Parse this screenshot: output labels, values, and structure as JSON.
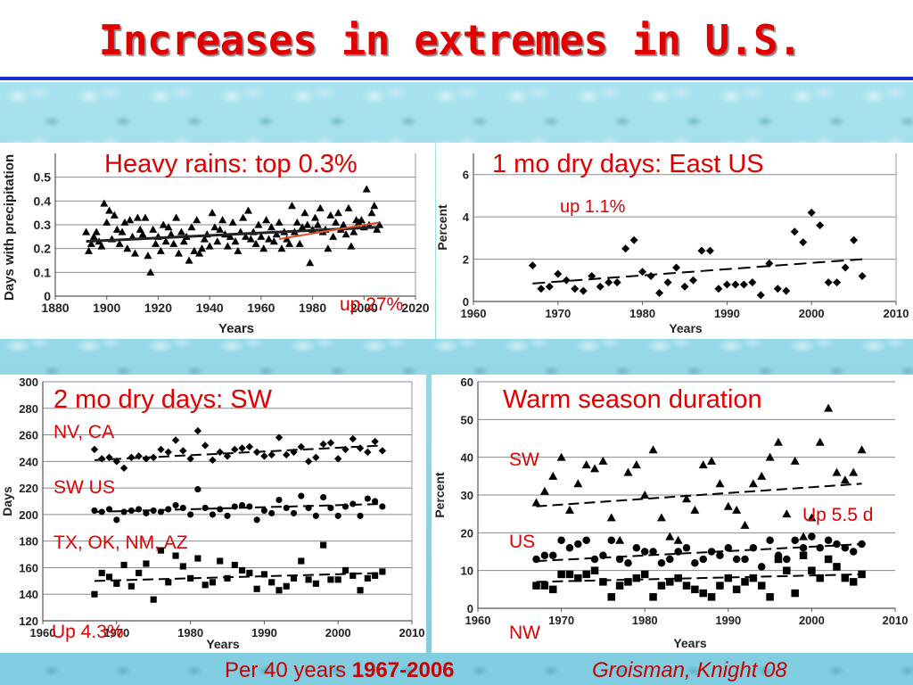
{
  "title": "Increases in extremes in U.S.",
  "footer": {
    "period_prefix": "Per 40 years ",
    "period_years": "1967-2006",
    "credit": "Groisman, Knight 08"
  },
  "chart_data": [
    {
      "type": "scatter",
      "panel_label": "Heavy rains: top 0.3%",
      "note": "up 27%",
      "xlabel": "Years",
      "ylabel": "Days with precipitation",
      "xlim": [
        1880,
        2020
      ],
      "ylim": [
        0,
        0.6
      ],
      "xticks": [
        1880,
        1900,
        1920,
        1940,
        1960,
        1980,
        2000,
        2020
      ],
      "yticks": [
        0,
        0.1,
        0.2,
        0.3,
        0.4,
        0.5
      ],
      "yticklabels": [
        "0",
        "0.1",
        "0.2",
        "0.3",
        "0.4",
        "0.5"
      ],
      "marker": "triangle",
      "marker_color": "#000000",
      "x": [
        1892,
        1893,
        1894,
        1895,
        1896,
        1897,
        1898,
        1899,
        1900,
        1901,
        1902,
        1903,
        1904,
        1905,
        1906,
        1907,
        1908,
        1909,
        1910,
        1911,
        1912,
        1913,
        1914,
        1915,
        1916,
        1917,
        1918,
        1919,
        1920,
        1921,
        1922,
        1923,
        1924,
        1925,
        1926,
        1927,
        1928,
        1929,
        1930,
        1931,
        1932,
        1933,
        1934,
        1935,
        1936,
        1937,
        1938,
        1939,
        1940,
        1941,
        1942,
        1943,
        1944,
        1945,
        1946,
        1947,
        1948,
        1949,
        1950,
        1951,
        1952,
        1953,
        1954,
        1955,
        1956,
        1957,
        1958,
        1959,
        1960,
        1961,
        1962,
        1963,
        1964,
        1965,
        1966,
        1967,
        1968,
        1969,
        1970,
        1971,
        1972,
        1973,
        1974,
        1975,
        1976,
        1977,
        1978,
        1979,
        1980,
        1981,
        1982,
        1983,
        1984,
        1985,
        1986,
        1987,
        1988,
        1989,
        1990,
        1991,
        1992,
        1993,
        1994,
        1995,
        1996,
        1997,
        1998,
        1999,
        2000,
        2001,
        2002,
        2003,
        2004,
        2005,
        2006
      ],
      "y": [
        0.27,
        0.19,
        0.22,
        0.25,
        0.27,
        0.23,
        0.21,
        0.39,
        0.31,
        0.36,
        0.24,
        0.34,
        0.28,
        0.22,
        0.27,
        0.31,
        0.2,
        0.32,
        0.25,
        0.18,
        0.33,
        0.28,
        0.26,
        0.33,
        0.17,
        0.1,
        0.28,
        0.22,
        0.25,
        0.19,
        0.3,
        0.23,
        0.29,
        0.26,
        0.22,
        0.33,
        0.18,
        0.27,
        0.23,
        0.25,
        0.15,
        0.29,
        0.19,
        0.32,
        0.18,
        0.2,
        0.24,
        0.26,
        0.21,
        0.35,
        0.29,
        0.23,
        0.28,
        0.32,
        0.26,
        0.21,
        0.25,
        0.31,
        0.23,
        0.19,
        0.27,
        0.33,
        0.25,
        0.36,
        0.24,
        0.27,
        0.22,
        0.3,
        0.25,
        0.2,
        0.32,
        0.24,
        0.29,
        0.23,
        0.26,
        0.31,
        0.2,
        0.27,
        0.24,
        0.22,
        0.38,
        0.27,
        0.31,
        0.22,
        0.29,
        0.35,
        0.3,
        0.14,
        0.28,
        0.33,
        0.3,
        0.37,
        0.27,
        0.28,
        0.2,
        0.34,
        0.25,
        0.31,
        0.35,
        0.28,
        0.3,
        0.26,
        0.37,
        0.21,
        0.27,
        0.32,
        0.31,
        0.32,
        0.29,
        0.45,
        0.3,
        0.35,
        0.38,
        0.28,
        0.3
      ],
      "trend_long": [
        [
          1892,
          0.23
        ],
        [
          2006,
          0.29
        ]
      ],
      "trend_recent": [
        [
          1967,
          0.24
        ],
        [
          2006,
          0.31
        ]
      ]
    },
    {
      "type": "scatter",
      "panel_label": "1 mo dry days: East US",
      "note": "up 1.1%",
      "xlabel": "Years",
      "ylabel": "Percent",
      "xlim": [
        1960,
        2010
      ],
      "ylim": [
        0,
        7
      ],
      "xticks": [
        1960,
        1970,
        1980,
        1990,
        2000,
        2010
      ],
      "yticks": [
        0,
        2,
        4,
        6
      ],
      "marker": "diamond",
      "x": [
        1967,
        1968,
        1969,
        1970,
        1971,
        1972,
        1973,
        1974,
        1975,
        1976,
        1977,
        1978,
        1979,
        1980,
        1981,
        1982,
        1983,
        1984,
        1985,
        1986,
        1987,
        1988,
        1989,
        1990,
        1991,
        1992,
        1993,
        1994,
        1995,
        1996,
        1997,
        1998,
        1999,
        2000,
        2001,
        2002,
        2003,
        2004,
        2005,
        2006
      ],
      "y": [
        1.7,
        0.6,
        0.7,
        1.3,
        1.0,
        0.6,
        0.5,
        1.2,
        0.7,
        0.9,
        0.9,
        2.5,
        2.9,
        1.4,
        1.2,
        0.4,
        0.9,
        1.6,
        0.7,
        1.0,
        2.4,
        2.4,
        0.6,
        0.8,
        0.8,
        0.8,
        0.9,
        0.3,
        1.8,
        0.6,
        0.5,
        3.3,
        2.8,
        4.2,
        3.6,
        0.9,
        0.9,
        1.6,
        2.9,
        1.2
      ],
      "trend": [
        [
          1967,
          0.85
        ],
        [
          2006,
          2.0
        ]
      ]
    },
    {
      "type": "scatter",
      "panel_label": "2 mo dry days: SW",
      "note": "Up 4.3%",
      "xlabel": "Years",
      "ylabel": "Days",
      "xlim": [
        1960,
        2010
      ],
      "ylim": [
        120,
        300
      ],
      "xticks": [
        1960,
        1970,
        1980,
        1990,
        2000,
        2010
      ],
      "yticks": [
        120,
        140,
        160,
        180,
        200,
        220,
        240,
        260,
        280,
        300
      ],
      "series": [
        {
          "name": "NV, CA",
          "marker": "diamond",
          "x": [
            1967,
            1968,
            1969,
            1970,
            1971,
            1972,
            1973,
            1974,
            1975,
            1976,
            1977,
            1978,
            1979,
            1980,
            1981,
            1982,
            1983,
            1984,
            1985,
            1986,
            1987,
            1988,
            1989,
            1990,
            1991,
            1992,
            1993,
            1994,
            1995,
            1996,
            1997,
            1998,
            1999,
            2000,
            2001,
            2002,
            2003,
            2004,
            2005,
            2006
          ],
          "y": [
            249,
            242,
            243,
            240,
            235,
            243,
            244,
            242,
            243,
            249,
            247,
            256,
            248,
            242,
            263,
            252,
            241,
            247,
            244,
            249,
            250,
            251,
            247,
            244,
            245,
            258,
            245,
            247,
            251,
            240,
            243,
            253,
            254,
            242,
            249,
            257,
            250,
            247,
            255,
            248
          ],
          "trend": [
            [
              1967,
              241
            ],
            [
              2006,
              252
            ]
          ]
        },
        {
          "name": "SW US",
          "marker": "circle",
          "x": [
            1967,
            1968,
            1969,
            1970,
            1971,
            1972,
            1973,
            1974,
            1975,
            1976,
            1977,
            1978,
            1979,
            1980,
            1981,
            1982,
            1983,
            1984,
            1985,
            1986,
            1987,
            1988,
            1989,
            1990,
            1991,
            1992,
            1993,
            1994,
            1995,
            1996,
            1997,
            1998,
            1999,
            2000,
            2001,
            2002,
            2003,
            2004,
            2005,
            2006
          ],
          "y": [
            203,
            202,
            204,
            196,
            202,
            203,
            204,
            201,
            203,
            202,
            204,
            207,
            205,
            200,
            219,
            205,
            200,
            204,
            199,
            206,
            207,
            206,
            196,
            203,
            201,
            211,
            205,
            201,
            214,
            205,
            199,
            213,
            205,
            199,
            206,
            208,
            199,
            212,
            210,
            206
          ],
          "trend": [
            [
              1967,
              202
            ],
            [
              2006,
              208
            ]
          ]
        },
        {
          "name": "TX, OK, NM, AZ",
          "marker": "square",
          "x": [
            1967,
            1968,
            1969,
            1970,
            1971,
            1972,
            1973,
            1974,
            1975,
            1976,
            1977,
            1978,
            1979,
            1980,
            1981,
            1982,
            1983,
            1984,
            1985,
            1986,
            1987,
            1988,
            1989,
            1990,
            1991,
            1992,
            1993,
            1994,
            1995,
            1996,
            1997,
            1998,
            1999,
            2000,
            2001,
            2002,
            2003,
            2004,
            2005,
            2006
          ],
          "y": [
            140,
            156,
            153,
            148,
            162,
            146,
            156,
            163,
            136,
            173,
            149,
            169,
            161,
            152,
            167,
            147,
            149,
            165,
            152,
            162,
            158,
            156,
            144,
            155,
            149,
            143,
            146,
            152,
            165,
            151,
            148,
            177,
            151,
            151,
            158,
            154,
            143,
            152,
            154,
            157
          ],
          "trend": [
            [
              1967,
              150
            ],
            [
              2006,
              156
            ]
          ]
        }
      ]
    },
    {
      "type": "scatter",
      "panel_label": "Warm season duration",
      "note": "Up 5.5 d",
      "xlabel": "Years",
      "ylabel": "Percent",
      "xlim": [
        1960,
        2010
      ],
      "ylim": [
        0,
        60
      ],
      "xticks": [
        1960,
        1970,
        1980,
        1990,
        2000,
        2010
      ],
      "yticks": [
        0,
        10,
        20,
        30,
        40,
        50,
        60
      ],
      "series": [
        {
          "name": "SW",
          "marker": "triangle",
          "x": [
            1967,
            1968,
            1969,
            1970,
            1971,
            1972,
            1973,
            1974,
            1975,
            1976,
            1977,
            1978,
            1979,
            1980,
            1981,
            1982,
            1983,
            1984,
            1985,
            1986,
            1987,
            1988,
            1989,
            1990,
            1991,
            1992,
            1993,
            1994,
            1995,
            1996,
            1997,
            1998,
            1999,
            2000,
            2001,
            2002,
            2003,
            2004,
            2005,
            2006
          ],
          "y": [
            28,
            31,
            35,
            40,
            26,
            33,
            38,
            37,
            39,
            24,
            18,
            36,
            38,
            30,
            42,
            24,
            19,
            18,
            29,
            26,
            38,
            39,
            33,
            27,
            26,
            22,
            33,
            35,
            40,
            44,
            25,
            39,
            19,
            24,
            44,
            53,
            36,
            34,
            36,
            42
          ],
          "trend": [
            [
              1967,
              27
            ],
            [
              2006,
              33
            ]
          ]
        },
        {
          "name": "US",
          "marker": "circle",
          "x": [
            1967,
            1968,
            1969,
            1970,
            1971,
            1972,
            1973,
            1974,
            1975,
            1976,
            1977,
            1978,
            1979,
            1980,
            1981,
            1982,
            1983,
            1984,
            1985,
            1986,
            1987,
            1988,
            1989,
            1990,
            1991,
            1992,
            1993,
            1994,
            1995,
            1996,
            1997,
            1998,
            1999,
            2000,
            2001,
            2002,
            2003,
            2004,
            2005,
            2006
          ],
          "y": [
            13,
            14,
            14,
            18,
            16,
            17,
            18,
            13,
            14,
            18,
            13,
            12,
            16,
            15,
            15,
            12,
            13,
            15,
            16,
            12,
            13,
            15,
            14,
            16,
            13,
            13,
            16,
            11,
            18,
            14,
            13,
            18,
            16,
            19,
            16,
            18,
            17,
            16,
            15,
            17
          ],
          "trend": [
            [
              1967,
              12.5
            ],
            [
              2006,
              17
            ]
          ]
        },
        {
          "name": "NW",
          "marker": "square",
          "x": [
            1967,
            1968,
            1969,
            1970,
            1971,
            1972,
            1973,
            1974,
            1975,
            1976,
            1977,
            1978,
            1979,
            1980,
            1981,
            1982,
            1983,
            1984,
            1985,
            1986,
            1987,
            1988,
            1989,
            1990,
            1991,
            1992,
            1993,
            1994,
            1995,
            1996,
            1997,
            1998,
            1999,
            2000,
            2001,
            2002,
            2003,
            2004,
            2005,
            2006
          ],
          "y": [
            6,
            6,
            5,
            9,
            9,
            8,
            9,
            10,
            7,
            3,
            6,
            7,
            8,
            9,
            3,
            6,
            7,
            8,
            6,
            5,
            4,
            3,
            6,
            8,
            5,
            7,
            8,
            6,
            3,
            13,
            10,
            4,
            14,
            10,
            8,
            13,
            11,
            8,
            7,
            9
          ],
          "trend": [
            [
              1967,
              7
            ],
            [
              2006,
              9
            ]
          ]
        }
      ]
    }
  ]
}
